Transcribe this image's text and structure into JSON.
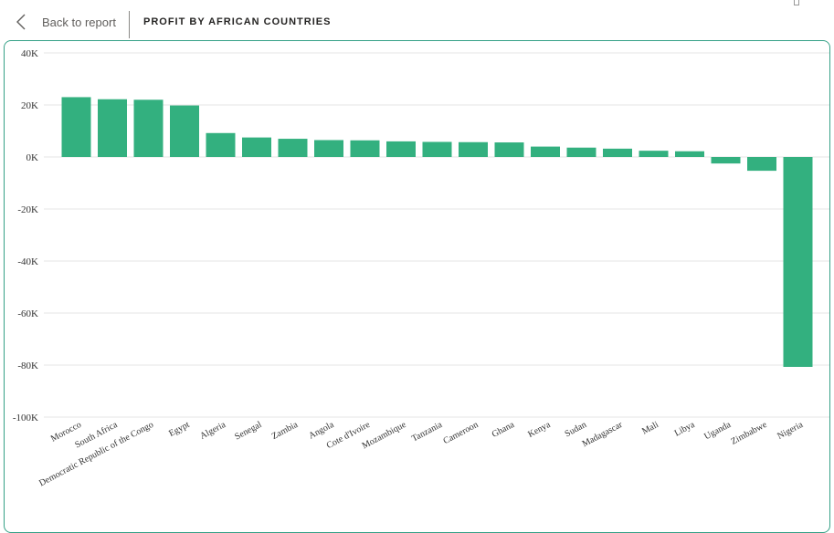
{
  "header": {
    "back_label": "Back to report",
    "title": "PROFIT BY AFRICAN COUNTRIES"
  },
  "colors": {
    "bar": "#33b07f",
    "frame": "#36a187",
    "gridline": "#e6e6e6"
  },
  "icons": {
    "back": "chevron-left-icon"
  },
  "chart_data": {
    "type": "bar",
    "categories": [
      "Morocco",
      "South Africa",
      "Democratic Republic of the Congo",
      "Egypt",
      "Algeria",
      "Senegal",
      "Zambia",
      "Angola",
      "Cote d'Ivoire",
      "Mozambique",
      "Tanzania",
      "Cameroon",
      "Ghana",
      "Kenya",
      "Sudan",
      "Madagascar",
      "Mali",
      "Libya",
      "Uganda",
      "Zimbabwe",
      "Nigeria"
    ],
    "values": [
      23000,
      22200,
      22000,
      19800,
      9200,
      7500,
      7000,
      6500,
      6400,
      6000,
      5800,
      5700,
      5600,
      4000,
      3600,
      3200,
      2400,
      2200,
      -2500,
      -5300,
      -80700
    ],
    "title": "PROFIT BY AFRICAN COUNTRIES",
    "xlabel": "",
    "ylabel": "",
    "ylim": [
      -100000,
      40000
    ],
    "yticks": [
      40000,
      20000,
      0,
      -20000,
      -40000,
      -60000,
      -80000,
      -100000
    ],
    "ytick_labels": [
      "40K",
      "20K",
      "0K",
      "-20K",
      "-40K",
      "-60K",
      "-80K",
      "-100K"
    ],
    "grid": true,
    "legend": "none"
  }
}
